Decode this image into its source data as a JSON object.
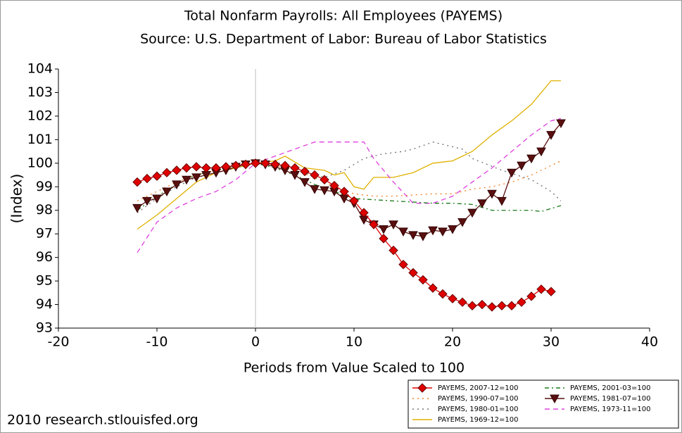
{
  "chart_data": {
    "type": "line",
    "title": "Total Nonfarm Payrolls: All Employees (PAYEMS)",
    "subtitle": "Source: U.S. Department of Labor: Bureau of Labor Statistics",
    "x_label": "Periods from Value Scaled to 100",
    "y_label": "(Index)",
    "footer": "2010 research.stlouisfed.org",
    "xlim": [
      -20,
      40
    ],
    "xticks": [
      -20,
      -10,
      0,
      10,
      20,
      30,
      40
    ],
    "ylim": [
      93,
      104
    ],
    "yticks": [
      93,
      94,
      95,
      96,
      97,
      98,
      99,
      100,
      101,
      102,
      103,
      104
    ],
    "grid": false,
    "legend": "bottom-right",
    "series": [
      {
        "name": "PAYEMS, 2007-12=100",
        "color": "#e00000",
        "style": "diamond",
        "x": [
          -12,
          -11,
          -10,
          -9,
          -8,
          -7,
          -6,
          -5,
          -4,
          -3,
          -2,
          -1,
          0,
          1,
          2,
          3,
          4,
          5,
          6,
          7,
          8,
          9,
          10,
          11,
          12,
          13,
          14,
          15,
          16,
          17,
          18,
          19,
          20,
          21,
          22,
          23,
          24,
          25,
          26,
          27,
          28,
          29,
          30
        ],
        "values": [
          99.2,
          99.35,
          99.45,
          99.6,
          99.7,
          99.8,
          99.85,
          99.8,
          99.8,
          99.85,
          99.9,
          99.95,
          100,
          100,
          99.95,
          99.9,
          99.8,
          99.65,
          99.5,
          99.3,
          99.05,
          98.8,
          98.4,
          97.9,
          97.4,
          96.8,
          96.3,
          95.7,
          95.35,
          95.05,
          94.7,
          94.45,
          94.25,
          94.1,
          93.95,
          94.0,
          93.9,
          93.95,
          93.95,
          94.1,
          94.35,
          94.65,
          94.55
        ]
      },
      {
        "name": "PAYEMS, 2001-03=100",
        "color": "#1a7a1a",
        "style": "dashdot",
        "x": [
          -12,
          -10,
          -8,
          -6,
          -4,
          -2,
          0,
          2,
          4,
          6,
          8,
          10,
          12,
          14,
          16,
          18,
          20,
          22,
          24,
          26,
          28,
          29,
          31
        ],
        "values": [
          98.0,
          98.6,
          99.1,
          99.5,
          99.7,
          99.9,
          100,
          99.8,
          99.5,
          99.1,
          98.8,
          98.5,
          98.45,
          98.4,
          98.35,
          98.3,
          98.3,
          98.25,
          98.0,
          98.0,
          98.0,
          97.95,
          98.2
        ]
      },
      {
        "name": "PAYEMS, 1990-07=100",
        "color": "#f08020",
        "style": "dot",
        "x": [
          -12,
          -10,
          -8,
          -6,
          -4,
          -2,
          0,
          2,
          4,
          6,
          8,
          10,
          12,
          14,
          16,
          18,
          20,
          22,
          24,
          26,
          28,
          30,
          31
        ],
        "values": [
          98.4,
          98.8,
          99.2,
          99.5,
          99.7,
          99.85,
          100,
          99.9,
          99.7,
          99.4,
          99.0,
          98.7,
          98.6,
          98.6,
          98.65,
          98.7,
          98.7,
          98.9,
          99.0,
          99.2,
          99.5,
          99.9,
          100.1
        ]
      },
      {
        "name": "PAYEMS, 1981-07=100",
        "color": "#5a1010",
        "style": "triangle",
        "x": [
          -12,
          -11,
          -10,
          -9,
          -8,
          -7,
          -6,
          -5,
          -4,
          -3,
          -2,
          -1,
          0,
          1,
          2,
          3,
          4,
          5,
          6,
          7,
          8,
          9,
          10,
          11,
          12,
          13,
          14,
          15,
          16,
          17,
          18,
          19,
          20,
          21,
          22,
          23,
          24,
          25,
          26,
          27,
          28,
          29,
          30,
          31
        ],
        "values": [
          98.1,
          98.4,
          98.5,
          98.8,
          99.1,
          99.3,
          99.4,
          99.5,
          99.6,
          99.7,
          99.85,
          99.95,
          100,
          99.95,
          99.85,
          99.7,
          99.5,
          99.2,
          98.9,
          98.85,
          98.8,
          98.5,
          98.3,
          97.6,
          97.4,
          97.2,
          97.4,
          97.1,
          96.95,
          96.9,
          97.15,
          97.1,
          97.2,
          97.5,
          97.9,
          98.3,
          98.7,
          98.4,
          99.6,
          99.9,
          100.2,
          100.5,
          101.2,
          101.7
        ]
      },
      {
        "name": "PAYEMS, 1980-01=100",
        "color": "#707070",
        "style": "dot",
        "x": [
          -12,
          -10,
          -8,
          -6,
          -4,
          -2,
          0,
          2,
          4,
          6,
          7,
          9,
          11,
          13,
          15,
          16,
          18,
          20,
          21,
          22,
          25,
          28,
          30,
          31
        ],
        "values": [
          97.9,
          98.5,
          99.0,
          99.4,
          99.6,
          99.8,
          100,
          99.9,
          99.7,
          99.5,
          99.4,
          99.7,
          100.2,
          100.4,
          100.5,
          100.6,
          100.9,
          100.7,
          100.6,
          100.2,
          99.7,
          99.3,
          98.8,
          98.4
        ]
      },
      {
        "name": "PAYEMS, 1973-11=100",
        "color": "#e040e0",
        "style": "dash",
        "x": [
          -12,
          -10,
          -8,
          -6,
          -4,
          -2,
          0,
          2,
          4,
          6,
          8,
          10,
          11,
          12,
          14,
          16,
          18,
          20,
          22,
          24,
          26,
          28,
          30,
          31
        ],
        "values": [
          96.2,
          97.5,
          98.1,
          98.5,
          98.8,
          99.3,
          100,
          100.3,
          100.6,
          100.9,
          100.9,
          100.9,
          100.9,
          100.2,
          99.2,
          98.3,
          98.3,
          98.6,
          99.2,
          99.8,
          100.5,
          101.2,
          101.8,
          101.9
        ]
      },
      {
        "name": "PAYEMS, 1969-12=100",
        "color": "#e0b000",
        "style": "solid",
        "x": [
          -12,
          -10,
          -8,
          -6,
          -4,
          -2,
          0,
          2,
          3,
          5,
          7,
          8,
          9,
          10,
          11,
          12,
          14,
          16,
          18,
          20,
          22,
          24,
          26,
          28,
          30,
          31
        ],
        "values": [
          97.2,
          97.8,
          98.5,
          99.2,
          99.6,
          99.8,
          100,
          100.1,
          100.3,
          99.8,
          99.7,
          99.5,
          99.6,
          99.0,
          98.9,
          99.4,
          99.4,
          99.6,
          100.0,
          100.1,
          100.5,
          101.2,
          101.8,
          102.5,
          103.5,
          103.5
        ]
      }
    ]
  }
}
